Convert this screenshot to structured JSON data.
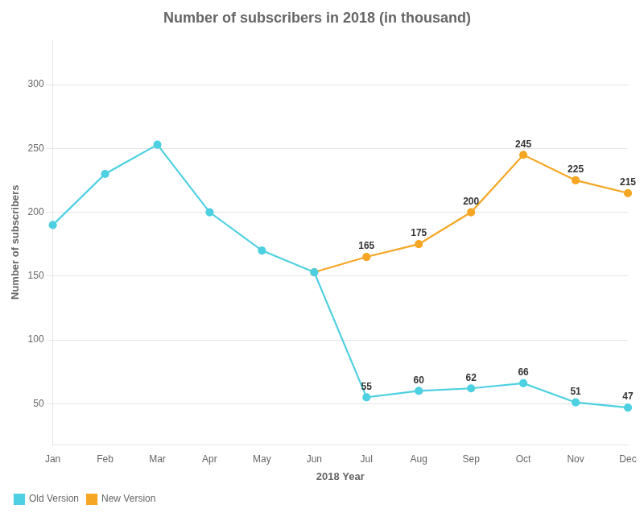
{
  "chart_data": {
    "type": "line",
    "title": "Number of subscribers in 2018 (in thousand)",
    "x_label": "2018 Year",
    "y_label": "Number of subscribers",
    "categories": [
      "Jan",
      "Feb",
      "Mar",
      "Apr",
      "May",
      "Jun",
      "Jul",
      "Aug",
      "Sep",
      "Oct",
      "Nov",
      "Dec"
    ],
    "series": [
      {
        "name": "Old Version",
        "color": "#4DD0E1",
        "marker": "circle",
        "values": [
          190,
          230,
          253,
          200,
          170,
          153,
          55,
          60,
          62,
          66,
          51,
          47
        ],
        "value_labels": [
          null,
          null,
          null,
          null,
          null,
          null,
          "55",
          "60",
          "62",
          "66",
          "51",
          "47"
        ]
      },
      {
        "name": "New Version",
        "color": "#F5A623",
        "marker": "circle",
        "values": [
          null,
          null,
          null,
          null,
          null,
          153,
          165,
          175,
          200,
          245,
          225,
          215
        ],
        "value_labels": [
          null,
          null,
          null,
          null,
          null,
          null,
          "165",
          "175",
          "200",
          "245",
          "225",
          "215"
        ]
      }
    ],
    "ylim": [
      18,
      335
    ],
    "yticks": [
      50,
      100,
      150,
      200,
      250,
      300
    ],
    "grid": true,
    "legend": "lower left"
  }
}
